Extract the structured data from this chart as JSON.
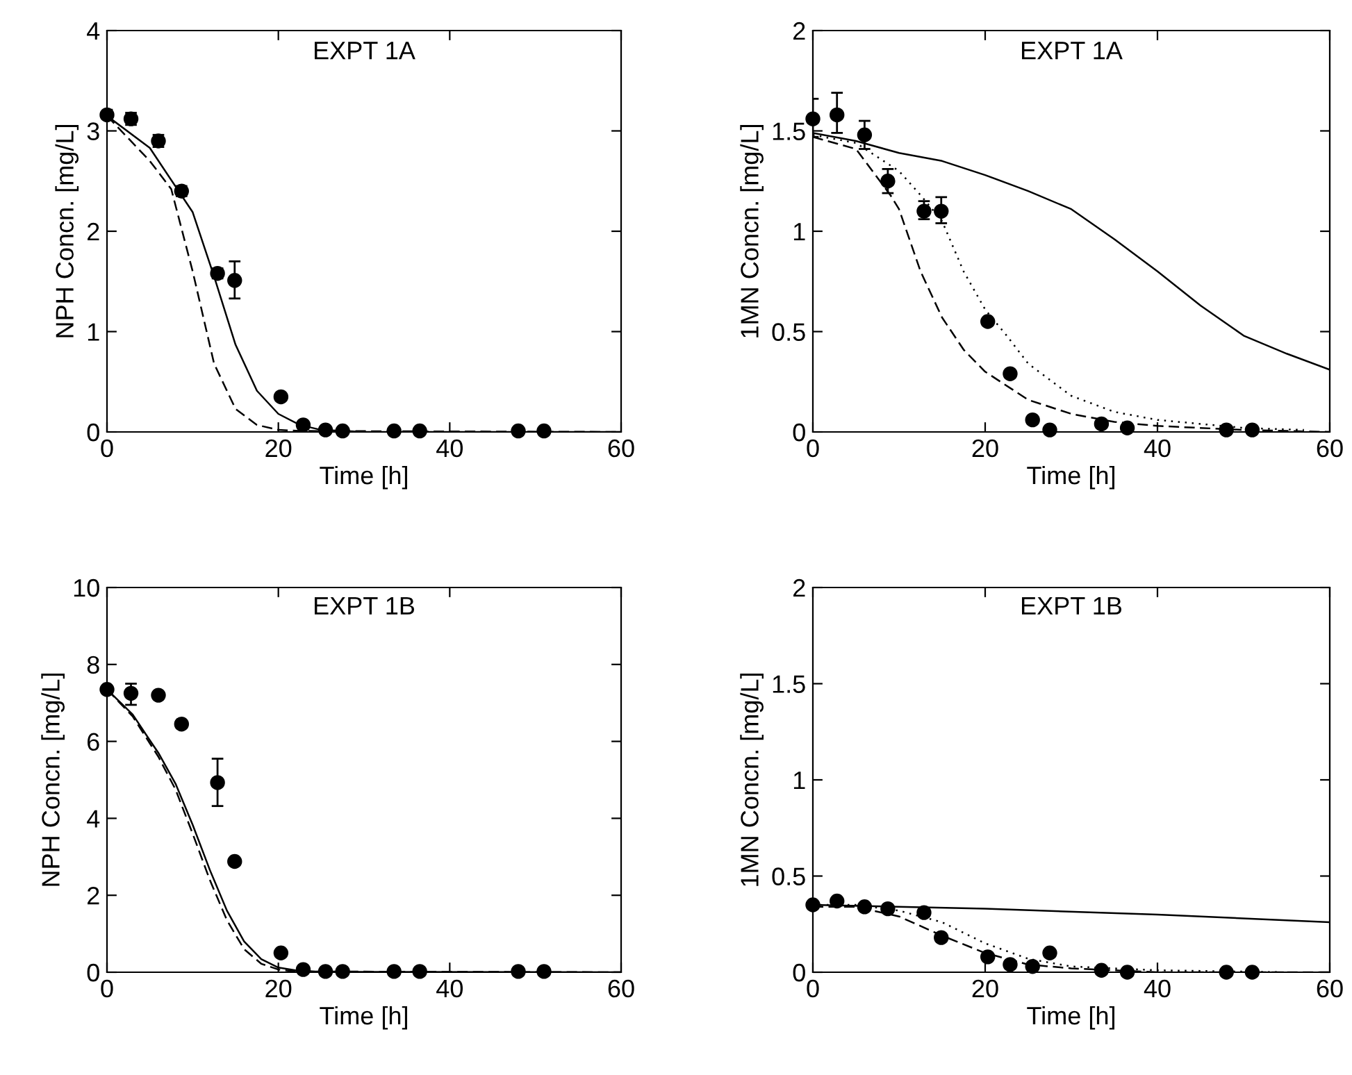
{
  "chart_data": [
    {
      "type": "scatter",
      "title": "EXPT 1A",
      "xlabel": "Time [h]",
      "ylabel": "NPH Concn. [mg/L]",
      "xlim": [
        0,
        60
      ],
      "ylim": [
        0,
        4
      ],
      "xticks": [
        0,
        20,
        40,
        60
      ],
      "yticks": [
        0,
        1,
        2,
        3,
        4
      ],
      "grid": false,
      "series": [
        {
          "type": "scatter",
          "color": "#000000",
          "marker": "circle",
          "x": [
            0,
            2.8,
            6,
            8.7,
            12.9,
            14.9,
            20.3,
            22.9,
            25.5,
            27.5,
            33.5,
            36.5,
            48,
            51
          ],
          "values": [
            3.16,
            3.12,
            2.9,
            2.4,
            1.58,
            1.51,
            0.35,
            0.07,
            0.02,
            0.01,
            0.01,
            0.01,
            0.01,
            0.01
          ],
          "errors": [
            [
              3.11,
              3.21
            ],
            [
              3.06,
              3.18
            ],
            [
              2.84,
              2.96
            ],
            [
              2.35,
              2.45
            ],
            [
              1.53,
              1.63
            ],
            [
              1.33,
              1.7
            ],
            null,
            null,
            null,
            null,
            null,
            null,
            null,
            null
          ]
        },
        {
          "type": "line",
          "color": "#000000",
          "line_style": "solid",
          "x": [
            0,
            5,
            10,
            12.5,
            15,
            17.5,
            20,
            22.5,
            25,
            30,
            60
          ],
          "values": [
            3.15,
            2.83,
            2.19,
            1.55,
            0.87,
            0.41,
            0.18,
            0.07,
            0.02,
            0,
            0
          ]
        },
        {
          "type": "line",
          "color": "#000000",
          "line_style": "dashed",
          "x": [
            0,
            5,
            7.5,
            10,
            12.5,
            15,
            17.5,
            20,
            22.5,
            60
          ],
          "values": [
            3.15,
            2.7,
            2.42,
            1.6,
            0.68,
            0.23,
            0.07,
            0.02,
            0.01,
            0
          ]
        }
      ]
    },
    {
      "type": "scatter",
      "title": "EXPT 1A",
      "xlabel": "Time [h]",
      "ylabel": "1MN Concn. [mg/L]",
      "xlim": [
        0,
        60
      ],
      "ylim": [
        0,
        2
      ],
      "xticks": [
        0,
        20,
        40,
        60
      ],
      "yticks": [
        0,
        0.5,
        1,
        1.5,
        2
      ],
      "grid": false,
      "series": [
        {
          "type": "scatter",
          "color": "#000000",
          "marker": "circle",
          "x": [
            0,
            2.8,
            6,
            8.7,
            12.9,
            14.9,
            20.3,
            22.9,
            25.5,
            27.5,
            33.5,
            36.5,
            48,
            51
          ],
          "values": [
            1.56,
            1.58,
            1.48,
            1.25,
            1.1,
            1.1,
            0.55,
            0.29,
            0.06,
            0.01,
            0.04,
            0.02,
            0.01,
            0.01
          ],
          "errors": [
            [
              1.47,
              1.66
            ],
            [
              1.49,
              1.69
            ],
            [
              1.41,
              1.55
            ],
            [
              1.19,
              1.31
            ],
            [
              1.06,
              1.15
            ],
            [
              1.04,
              1.17
            ],
            null,
            null,
            null,
            null,
            null,
            null,
            null,
            null
          ]
        },
        {
          "type": "line",
          "color": "#000000",
          "line_style": "solid",
          "x": [
            0,
            5,
            10,
            15,
            20,
            25,
            30,
            35,
            40,
            45,
            50,
            55,
            60
          ],
          "values": [
            1.49,
            1.45,
            1.39,
            1.35,
            1.28,
            1.2,
            1.11,
            0.96,
            0.8,
            0.63,
            0.48,
            0.39,
            0.31
          ]
        },
        {
          "type": "line",
          "color": "#000000",
          "line_style": "dashed",
          "x": [
            0,
            5,
            9,
            10,
            12.5,
            15,
            17.5,
            20,
            25,
            30,
            35,
            40,
            50,
            60
          ],
          "values": [
            1.47,
            1.41,
            1.18,
            1.11,
            0.8,
            0.57,
            0.41,
            0.3,
            0.16,
            0.09,
            0.05,
            0.03,
            0.01,
            0
          ]
        },
        {
          "type": "line",
          "color": "#000000",
          "line_style": "dotted",
          "x": [
            0,
            5,
            10,
            12.5,
            15,
            17.5,
            20,
            22.5,
            25,
            30,
            35,
            40,
            50,
            57
          ],
          "values": [
            1.48,
            1.44,
            1.3,
            1.18,
            1.05,
            0.8,
            0.61,
            0.48,
            0.34,
            0.18,
            0.1,
            0.06,
            0.02,
            0.01
          ]
        }
      ]
    },
    {
      "type": "scatter",
      "title": "EXPT 1B",
      "xlabel": "Time [h]",
      "ylabel": "NPH Concn. [mg/L]",
      "xlim": [
        0,
        60
      ],
      "ylim": [
        0,
        10
      ],
      "xticks": [
        0,
        20,
        40,
        60
      ],
      "yticks": [
        0,
        2,
        4,
        6,
        8,
        10
      ],
      "grid": false,
      "series": [
        {
          "type": "scatter",
          "color": "#000000",
          "marker": "circle",
          "x": [
            0,
            2.8,
            6,
            8.7,
            12.9,
            14.9,
            20.3,
            22.9,
            25.5,
            27.5,
            33.5,
            36.5,
            48,
            51
          ],
          "values": [
            7.35,
            7.25,
            7.2,
            6.45,
            4.93,
            2.88,
            0.5,
            0.07,
            0.02,
            0.02,
            0.02,
            0.02,
            0.02,
            0.02
          ],
          "errors": [
            null,
            [
              6.95,
              7.5
            ],
            null,
            null,
            [
              4.32,
              5.55
            ],
            null,
            null,
            null,
            null,
            null,
            null,
            null,
            null,
            null
          ]
        },
        {
          "type": "line",
          "color": "#000000",
          "line_style": "solid",
          "x": [
            0,
            3,
            5,
            6,
            8,
            10,
            12,
            14,
            16,
            18,
            20,
            22,
            25,
            60
          ],
          "values": [
            7.35,
            6.7,
            6.03,
            5.7,
            4.9,
            3.83,
            2.66,
            1.6,
            0.8,
            0.34,
            0.12,
            0.05,
            0.01,
            0
          ]
        },
        {
          "type": "line",
          "color": "#000000",
          "line_style": "dashed",
          "x": [
            0,
            3,
            6,
            8,
            10,
            12,
            14,
            16,
            18,
            20,
            22,
            60
          ],
          "values": [
            7.35,
            6.65,
            5.6,
            4.75,
            3.6,
            2.4,
            1.35,
            0.6,
            0.22,
            0.07,
            0.02,
            0
          ]
        }
      ]
    },
    {
      "type": "scatter",
      "title": "EXPT 1B",
      "xlabel": "Time [h]",
      "ylabel": "1MN Concn. [mg/L]",
      "xlim": [
        0,
        60
      ],
      "ylim": [
        0,
        2
      ],
      "xticks": [
        0,
        20,
        40,
        60
      ],
      "yticks": [
        0,
        0.5,
        1,
        1.5,
        2
      ],
      "grid": false,
      "series": [
        {
          "type": "scatter",
          "color": "#000000",
          "marker": "circle",
          "x": [
            0,
            2.8,
            6,
            8.7,
            12.9,
            14.9,
            20.3,
            22.9,
            25.5,
            27.5,
            33.5,
            36.5,
            48,
            51
          ],
          "values": [
            0.35,
            0.37,
            0.34,
            0.33,
            0.31,
            0.18,
            0.08,
            0.04,
            0.03,
            0.1,
            0.01,
            0.0,
            0.0,
            0.0
          ]
        },
        {
          "type": "line",
          "color": "#000000",
          "line_style": "solid",
          "x": [
            0,
            20,
            40,
            60
          ],
          "values": [
            0.35,
            0.33,
            0.3,
            0.26
          ]
        },
        {
          "type": "line",
          "color": "#000000",
          "line_style": "dashed",
          "x": [
            0,
            5,
            10,
            15,
            20,
            25,
            30,
            40,
            60
          ],
          "values": [
            0.34,
            0.34,
            0.29,
            0.19,
            0.1,
            0.04,
            0.02,
            0,
            0
          ]
        },
        {
          "type": "line",
          "color": "#000000",
          "line_style": "dotted",
          "x": [
            0,
            5,
            10,
            15,
            20,
            25,
            30,
            40,
            55
          ],
          "values": [
            0.35,
            0.35,
            0.32,
            0.26,
            0.15,
            0.07,
            0.03,
            0.01,
            0
          ]
        }
      ]
    }
  ]
}
